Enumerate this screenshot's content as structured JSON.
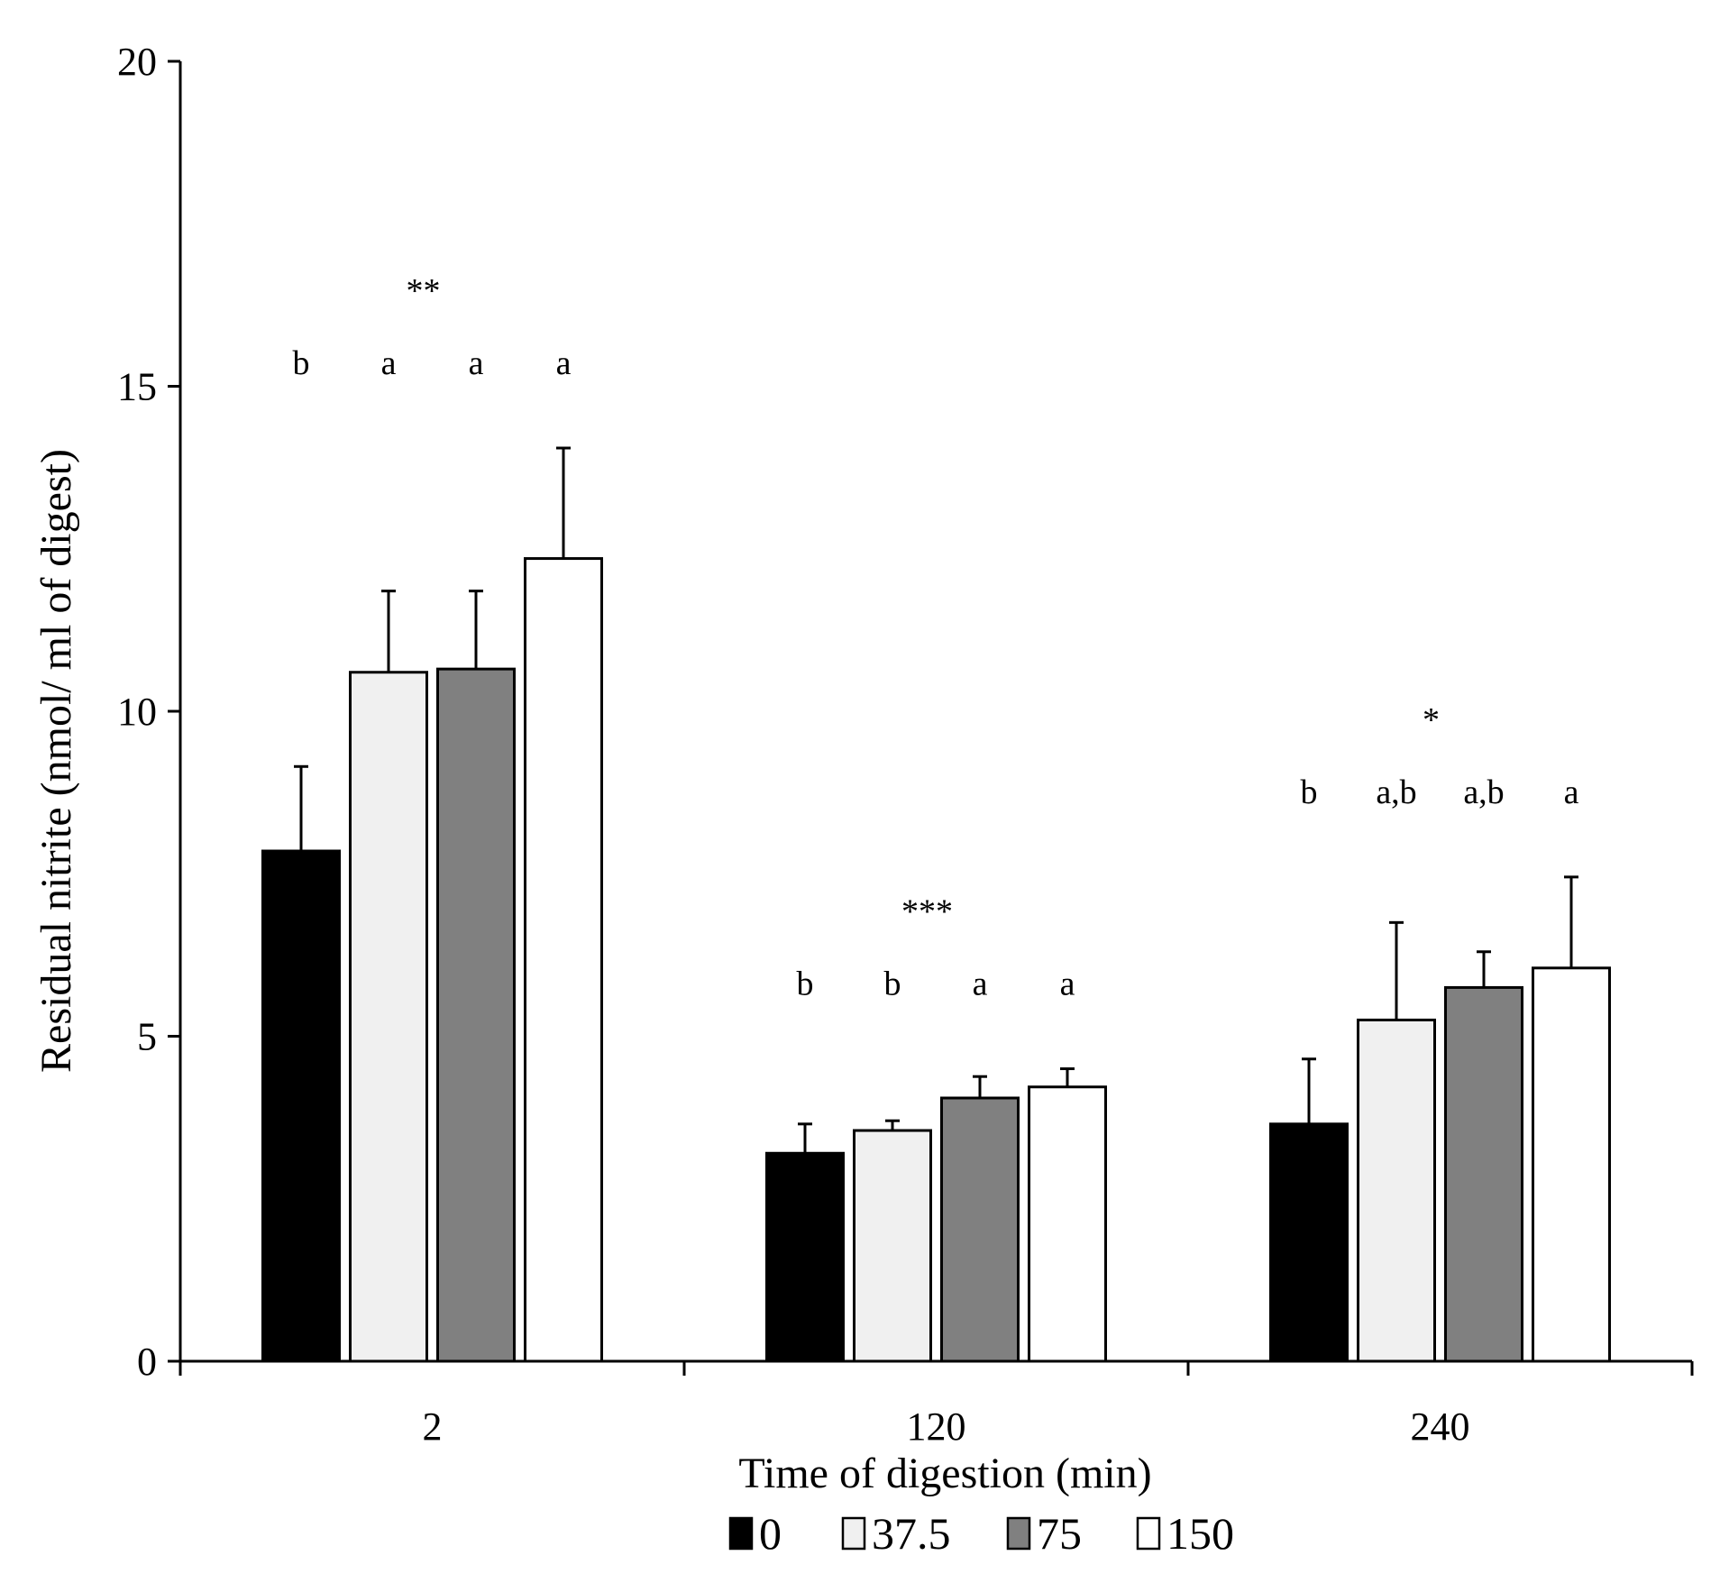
{
  "chart_data": {
    "type": "bar",
    "xlabel": "Time of digestion (min)",
    "ylabel": "Residual nitrite (nmol/ ml of digest)",
    "ylim": [
      0,
      20
    ],
    "yticks": [
      "0",
      "5",
      "10",
      "15",
      "20"
    ],
    "categories": [
      "2",
      "120",
      "240"
    ],
    "colors": {
      "0": "#000000",
      "37.5": "#f0f0f0",
      "75": "#808080",
      "150": "#ffffff"
    },
    "series": [
      {
        "name": "0",
        "values": [
          7.85,
          3.2,
          3.65
        ],
        "errors": [
          1.3,
          0.45,
          1.0
        ]
      },
      {
        "name": "37.5",
        "values": [
          10.6,
          3.55,
          5.25
        ],
        "errors": [
          1.25,
          0.15,
          1.5
        ]
      },
      {
        "name": "75",
        "values": [
          10.65,
          4.05,
          5.75
        ],
        "errors": [
          1.2,
          0.33,
          0.55
        ]
      },
      {
        "name": "150",
        "values": [
          12.35,
          4.22,
          6.05
        ],
        "errors": [
          1.7,
          0.28,
          1.4
        ]
      }
    ],
    "significance": [
      "**",
      "***",
      "*"
    ],
    "letters": [
      [
        "b",
        "a",
        "a",
        "a"
      ],
      [
        "b",
        "b",
        "a",
        "a"
      ],
      [
        "b",
        "a,b",
        "a,b",
        "a"
      ]
    ],
    "legend": [
      "0",
      "37.5",
      "75",
      "150"
    ]
  }
}
